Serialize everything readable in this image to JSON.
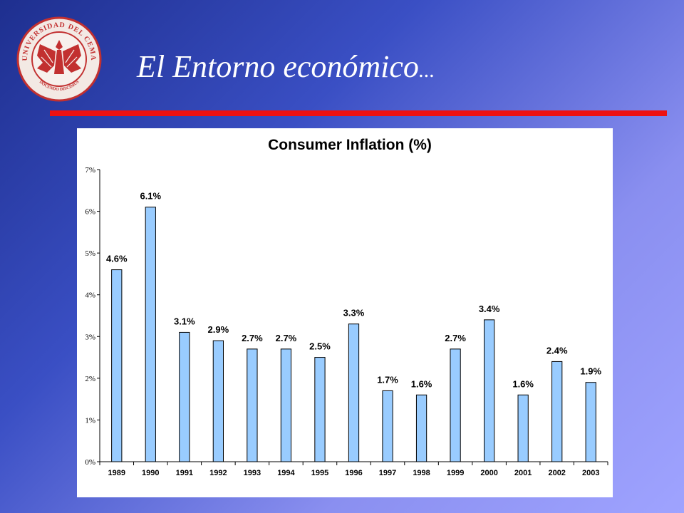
{
  "slide": {
    "title_main": "El Entorno económico",
    "title_ellipsis": "..."
  },
  "seal": {
    "text_top": "UNIVERSIDAD DEL CEMA",
    "text_bottom": "DOCENDO DISCIMUS",
    "color": "#c23030"
  },
  "colors": {
    "rule": "#ee1111",
    "bar_fill": "#99ccff",
    "bar_stroke": "#000000"
  },
  "chart_data": {
    "type": "bar",
    "title": "Consumer Inflation (%)",
    "xlabel": "",
    "ylabel": "",
    "categories": [
      "1989",
      "1990",
      "1991",
      "1992",
      "1993",
      "1994",
      "1995",
      "1996",
      "1997",
      "1998",
      "1999",
      "2000",
      "2001",
      "2002",
      "2003"
    ],
    "values": [
      4.6,
      6.1,
      3.1,
      2.9,
      2.7,
      2.7,
      2.5,
      3.3,
      1.7,
      1.6,
      2.7,
      3.4,
      1.6,
      2.4,
      1.9
    ],
    "value_labels": [
      "4.6%",
      "6.1%",
      "3.1%",
      "2.9%",
      "2.7%",
      "2.7%",
      "2.5%",
      "3.3%",
      "1.7%",
      "1.6%",
      "2.7%",
      "3.4%",
      "1.6%",
      "2.4%",
      "1.9%"
    ],
    "ylim": [
      0,
      7
    ],
    "yticks": [
      "0%",
      "1%",
      "2%",
      "3%",
      "4%",
      "5%",
      "6%",
      "7%"
    ],
    "grid": false,
    "legend": "none"
  }
}
